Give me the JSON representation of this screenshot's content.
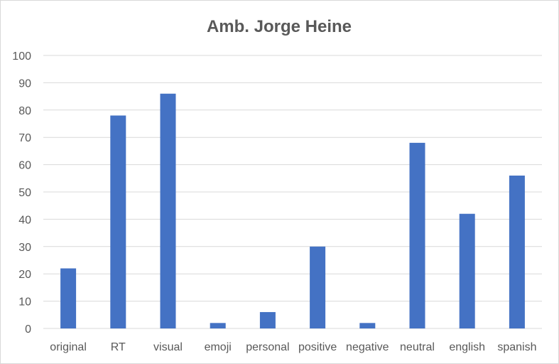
{
  "chart_data": {
    "type": "bar",
    "title": "Amb. Jorge Heine",
    "xlabel": "",
    "ylabel": "",
    "categories": [
      "original",
      "RT",
      "visual",
      "emoji",
      "personal",
      "positive",
      "negative",
      "neutral",
      "english",
      "spanish"
    ],
    "values": [
      22,
      78,
      86,
      2,
      6,
      30,
      2,
      68,
      42,
      56
    ],
    "ylim": [
      0,
      100
    ],
    "yticks": [
      "0",
      "10",
      "20",
      "30",
      "40",
      "50",
      "60",
      "70",
      "80",
      "90",
      "100"
    ],
    "grid": true,
    "legend": "none",
    "bar_color": "#4472c4"
  }
}
